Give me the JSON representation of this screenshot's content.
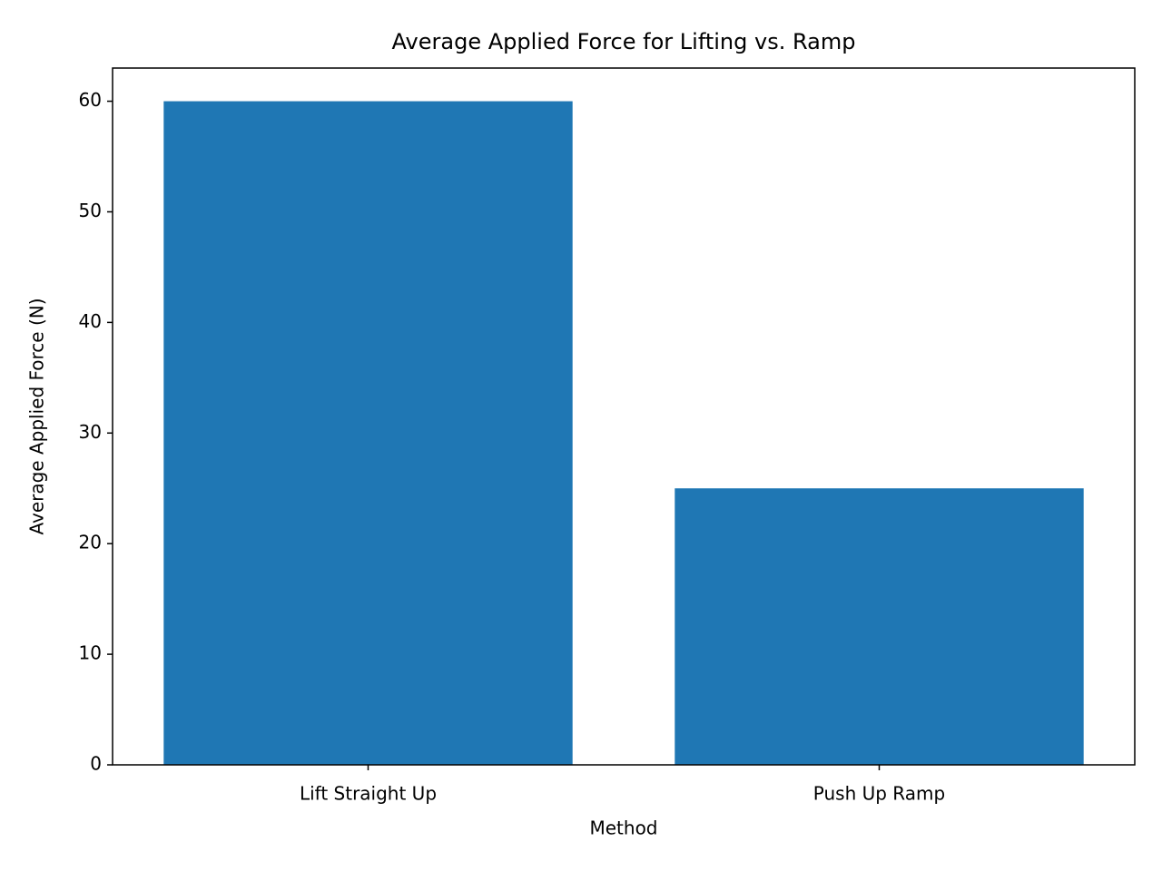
{
  "chart_data": {
    "type": "bar",
    "title": "Average Applied Force for Lifting vs. Ramp",
    "x_label": "Method",
    "y_label": "Average Applied Force (N)",
    "categories": [
      "Lift Straight Up",
      "Push Up Ramp"
    ],
    "values": [
      60,
      25
    ],
    "color": "#1f77b4",
    "ylim": [
      0,
      63
    ],
    "yticks": [
      0,
      10,
      20,
      30,
      40,
      50,
      60
    ],
    "grid": false
  }
}
